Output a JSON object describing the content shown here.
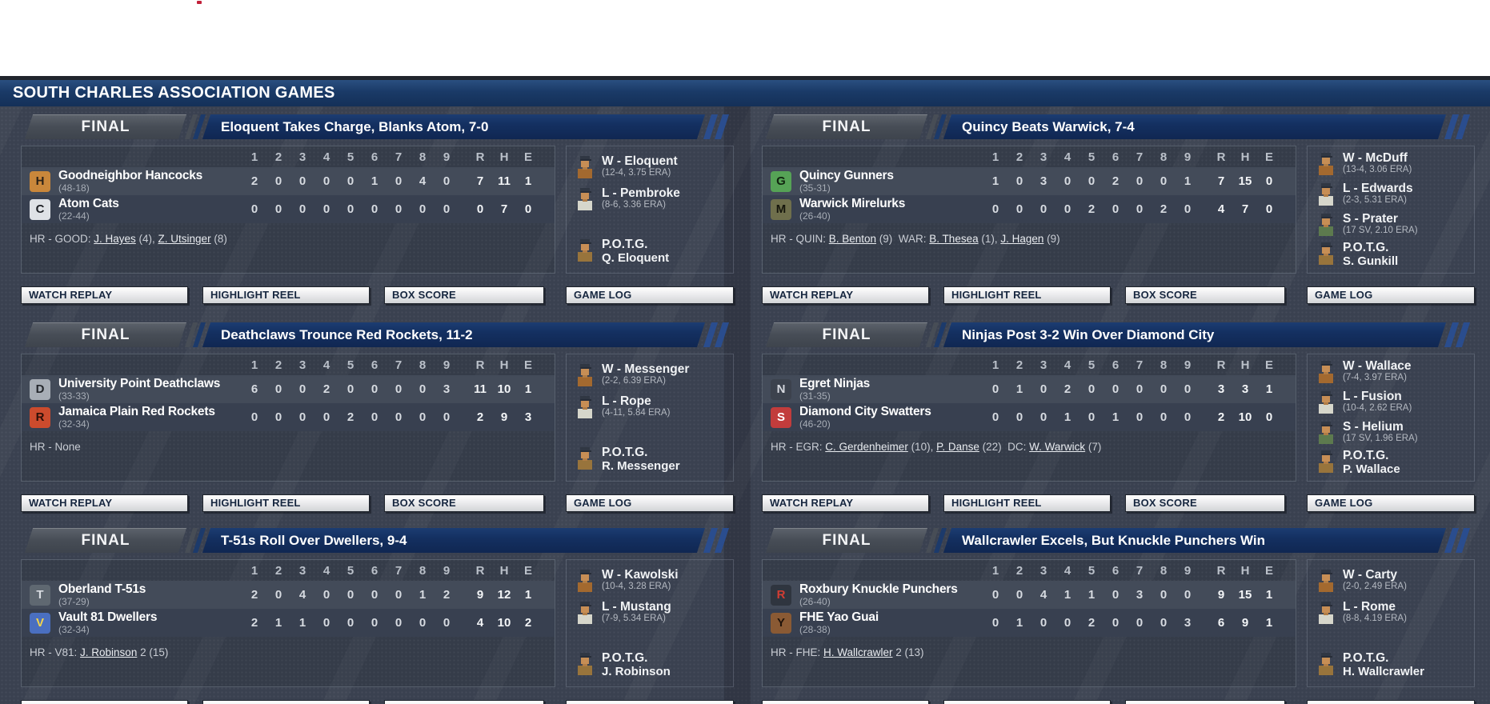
{
  "title_bar": {
    "title": "SOUTH CHARLES ASSOCIATION GAMES"
  },
  "line_score_columns": {
    "innings": [
      "1",
      "2",
      "3",
      "4",
      "5",
      "6",
      "7",
      "8",
      "9"
    ],
    "totals": [
      "R",
      "H",
      "E"
    ]
  },
  "action_buttons": [
    "WATCH REPLAY",
    "HIGHLIGHT REEL",
    "BOX SCORE",
    "GAME LOG"
  ],
  "labels": {
    "potg": "P.O.T.G."
  },
  "colors": {
    "title_bar_navy": "#1a3a67",
    "headline_navy": "#143061",
    "final_badge_gray": "#474d56",
    "background": "#3a4150",
    "away_row": "#434b59",
    "home_row": "#384050",
    "button_text_navy": "#16263f",
    "link_text": "#e9ecf0"
  },
  "games": [
    {
      "status": "FINAL",
      "headline": "Eloquent Takes Charge, Blanks Atom, 7-0",
      "teams": [
        {
          "name": "Goodneighbor Hancocks",
          "record": "(48-18)",
          "innings": [
            "2",
            "0",
            "0",
            "0",
            "0",
            "1",
            "0",
            "4",
            "0"
          ],
          "runs": "7",
          "hits": "11",
          "errors": "1",
          "logo": {
            "bg": "#c9873b",
            "fg": "#2a2118",
            "glyph": "H"
          }
        },
        {
          "name": "Atom Cats",
          "record": "(22-44)",
          "innings": [
            "0",
            "0",
            "0",
            "0",
            "0",
            "0",
            "0",
            "0",
            "0"
          ],
          "runs": "0",
          "hits": "7",
          "errors": "0",
          "logo": {
            "bg": "#dfe2e6",
            "fg": "#1c1f24",
            "glyph": "C"
          }
        }
      ],
      "hr_line": [
        {
          "text": "HR - GOOD: "
        },
        {
          "text": "J. Hayes",
          "link": true
        },
        {
          "text": " (4), "
        },
        {
          "text": "Z. Utsinger",
          "link": true
        },
        {
          "text": " (8)"
        }
      ],
      "pitchers": [
        {
          "line": "W - Eloquent",
          "stats": "(12-4, 3.75 ERA)"
        },
        {
          "line": "L - Pembroke",
          "stats": "(8-6, 3.36 ERA)"
        }
      ],
      "potg": "Q. Eloquent"
    },
    {
      "status": "FINAL",
      "headline": "Quincy Beats Warwick, 7-4",
      "teams": [
        {
          "name": "Quincy Gunners",
          "record": "(35-31)",
          "innings": [
            "1",
            "0",
            "3",
            "0",
            "0",
            "2",
            "0",
            "0",
            "1"
          ],
          "runs": "7",
          "hits": "15",
          "errors": "0",
          "logo": {
            "bg": "#56a356",
            "fg": "#10240f",
            "glyph": "G"
          }
        },
        {
          "name": "Warwick Mirelurks",
          "record": "(26-40)",
          "innings": [
            "0",
            "0",
            "0",
            "0",
            "2",
            "0",
            "0",
            "2",
            "0"
          ],
          "runs": "4",
          "hits": "7",
          "errors": "0",
          "logo": {
            "bg": "#6f6f4c",
            "fg": "#15150c",
            "glyph": "M"
          }
        }
      ],
      "hr_line": [
        {
          "text": "HR - QUIN: "
        },
        {
          "text": "B. Benton",
          "link": true
        },
        {
          "text": " (9)  WAR: "
        },
        {
          "text": "B. Thesea",
          "link": true
        },
        {
          "text": " (1), "
        },
        {
          "text": "J. Hagen",
          "link": true
        },
        {
          "text": " (9)"
        }
      ],
      "pitchers": [
        {
          "line": "W - McDuff",
          "stats": "(13-4, 3.06 ERA)"
        },
        {
          "line": "L - Edwards",
          "stats": "(2-3, 5.31 ERA)"
        },
        {
          "line": "S - Prater",
          "stats": "(17 SV, 2.10 ERA)"
        }
      ],
      "potg": "S. Gunkill"
    },
    {
      "status": "FINAL",
      "headline": "Deathclaws Trounce Red Rockets, 11-2",
      "teams": [
        {
          "name": "University Point Deathclaws",
          "record": "(33-33)",
          "innings": [
            "6",
            "0",
            "0",
            "2",
            "0",
            "0",
            "0",
            "0",
            "3"
          ],
          "runs": "11",
          "hits": "10",
          "errors": "1",
          "logo": {
            "bg": "#a8aeb6",
            "fg": "#23262b",
            "glyph": "D"
          }
        },
        {
          "name": "Jamaica Plain Red Rockets",
          "record": "(32-34)",
          "innings": [
            "0",
            "0",
            "0",
            "0",
            "2",
            "0",
            "0",
            "0",
            "0"
          ],
          "runs": "2",
          "hits": "9",
          "errors": "3",
          "logo": {
            "bg": "#cc4b2d",
            "fg": "#2a0f08",
            "glyph": "R"
          }
        }
      ],
      "hr_line": [
        {
          "text": "HR - None"
        }
      ],
      "pitchers": [
        {
          "line": "W - Messenger",
          "stats": "(2-2, 6.39 ERA)"
        },
        {
          "line": "L - Rope",
          "stats": "(4-11, 5.84 ERA)"
        }
      ],
      "potg": "R. Messenger"
    },
    {
      "status": "FINAL",
      "headline": "Ninjas Post 3-2 Win Over Diamond City",
      "teams": [
        {
          "name": "Egret Ninjas",
          "record": "(31-35)",
          "innings": [
            "0",
            "1",
            "0",
            "2",
            "0",
            "0",
            "0",
            "0",
            "0"
          ],
          "runs": "3",
          "hits": "3",
          "errors": "1",
          "logo": {
            "bg": "#3c424d",
            "fg": "#d7dae0",
            "glyph": "N"
          }
        },
        {
          "name": "Diamond City Swatters",
          "record": "(46-20)",
          "innings": [
            "0",
            "0",
            "0",
            "1",
            "0",
            "1",
            "0",
            "0",
            "0"
          ],
          "runs": "2",
          "hits": "10",
          "errors": "0",
          "logo": {
            "bg": "#c23c3c",
            "fg": "#ffffff",
            "glyph": "S"
          }
        }
      ],
      "hr_line": [
        {
          "text": "HR - EGR: "
        },
        {
          "text": "C. Gerdenheimer",
          "link": true
        },
        {
          "text": " (10), "
        },
        {
          "text": "P. Danse",
          "link": true
        },
        {
          "text": " (22)  DC: "
        },
        {
          "text": "W. Warwick",
          "link": true
        },
        {
          "text": " (7)"
        }
      ],
      "pitchers": [
        {
          "line": "W - Wallace",
          "stats": "(7-4, 3.97 ERA)"
        },
        {
          "line": "L - Fusion",
          "stats": "(10-4, 2.62 ERA)"
        },
        {
          "line": "S - Helium",
          "stats": "(17 SV, 1.96 ERA)"
        }
      ],
      "potg": "P. Wallace"
    },
    {
      "status": "FINAL",
      "headline": "T-51s Roll Over Dwellers, 9-4",
      "teams": [
        {
          "name": "Oberland T-51s",
          "record": "(37-29)",
          "innings": [
            "2",
            "0",
            "4",
            "0",
            "0",
            "0",
            "0",
            "1",
            "2"
          ],
          "runs": "9",
          "hits": "12",
          "errors": "1",
          "logo": {
            "bg": "#5f6871",
            "fg": "#d9dde2",
            "glyph": "T"
          }
        },
        {
          "name": "Vault 81 Dwellers",
          "record": "(32-34)",
          "innings": [
            "2",
            "1",
            "1",
            "0",
            "0",
            "0",
            "0",
            "0",
            "0"
          ],
          "runs": "4",
          "hits": "10",
          "errors": "2",
          "logo": {
            "bg": "#4a6fc0",
            "fg": "#f4d54a",
            "glyph": "V"
          }
        }
      ],
      "hr_line": [
        {
          "text": "HR - V81: "
        },
        {
          "text": "J. Robinson",
          "link": true
        },
        {
          "text": " 2 (15)"
        }
      ],
      "pitchers": [
        {
          "line": "W - Kawolski",
          "stats": "(10-4, 3.28 ERA)"
        },
        {
          "line": "L - Mustang",
          "stats": "(7-9, 5.34 ERA)"
        }
      ],
      "potg": "J. Robinson"
    },
    {
      "status": "FINAL",
      "headline": "Wallcrawler Excels, But Knuckle Punchers Win",
      "teams": [
        {
          "name": "Roxbury Knuckle Punchers",
          "record": "(26-40)",
          "innings": [
            "0",
            "0",
            "4",
            "1",
            "1",
            "0",
            "3",
            "0",
            "0"
          ],
          "runs": "9",
          "hits": "15",
          "errors": "1",
          "logo": {
            "bg": "#2f353f",
            "fg": "#d23d33",
            "glyph": "R"
          }
        },
        {
          "name": "FHE Yao Guai",
          "record": "(28-38)",
          "innings": [
            "0",
            "1",
            "0",
            "0",
            "2",
            "0",
            "0",
            "0",
            "3"
          ],
          "runs": "6",
          "hits": "9",
          "errors": "1",
          "logo": {
            "bg": "#8a5a34",
            "fg": "#20130a",
            "glyph": "Y"
          }
        }
      ],
      "hr_line": [
        {
          "text": "HR - FHE: "
        },
        {
          "text": "H. Wallcrawler",
          "link": true
        },
        {
          "text": " 2 (13)"
        }
      ],
      "pitchers": [
        {
          "line": "W - Carty",
          "stats": "(2-0, 2.49 ERA)"
        },
        {
          "line": "L - Rome",
          "stats": "(8-8, 4.19 ERA)"
        }
      ],
      "potg": "H. Wallcrawler"
    }
  ]
}
